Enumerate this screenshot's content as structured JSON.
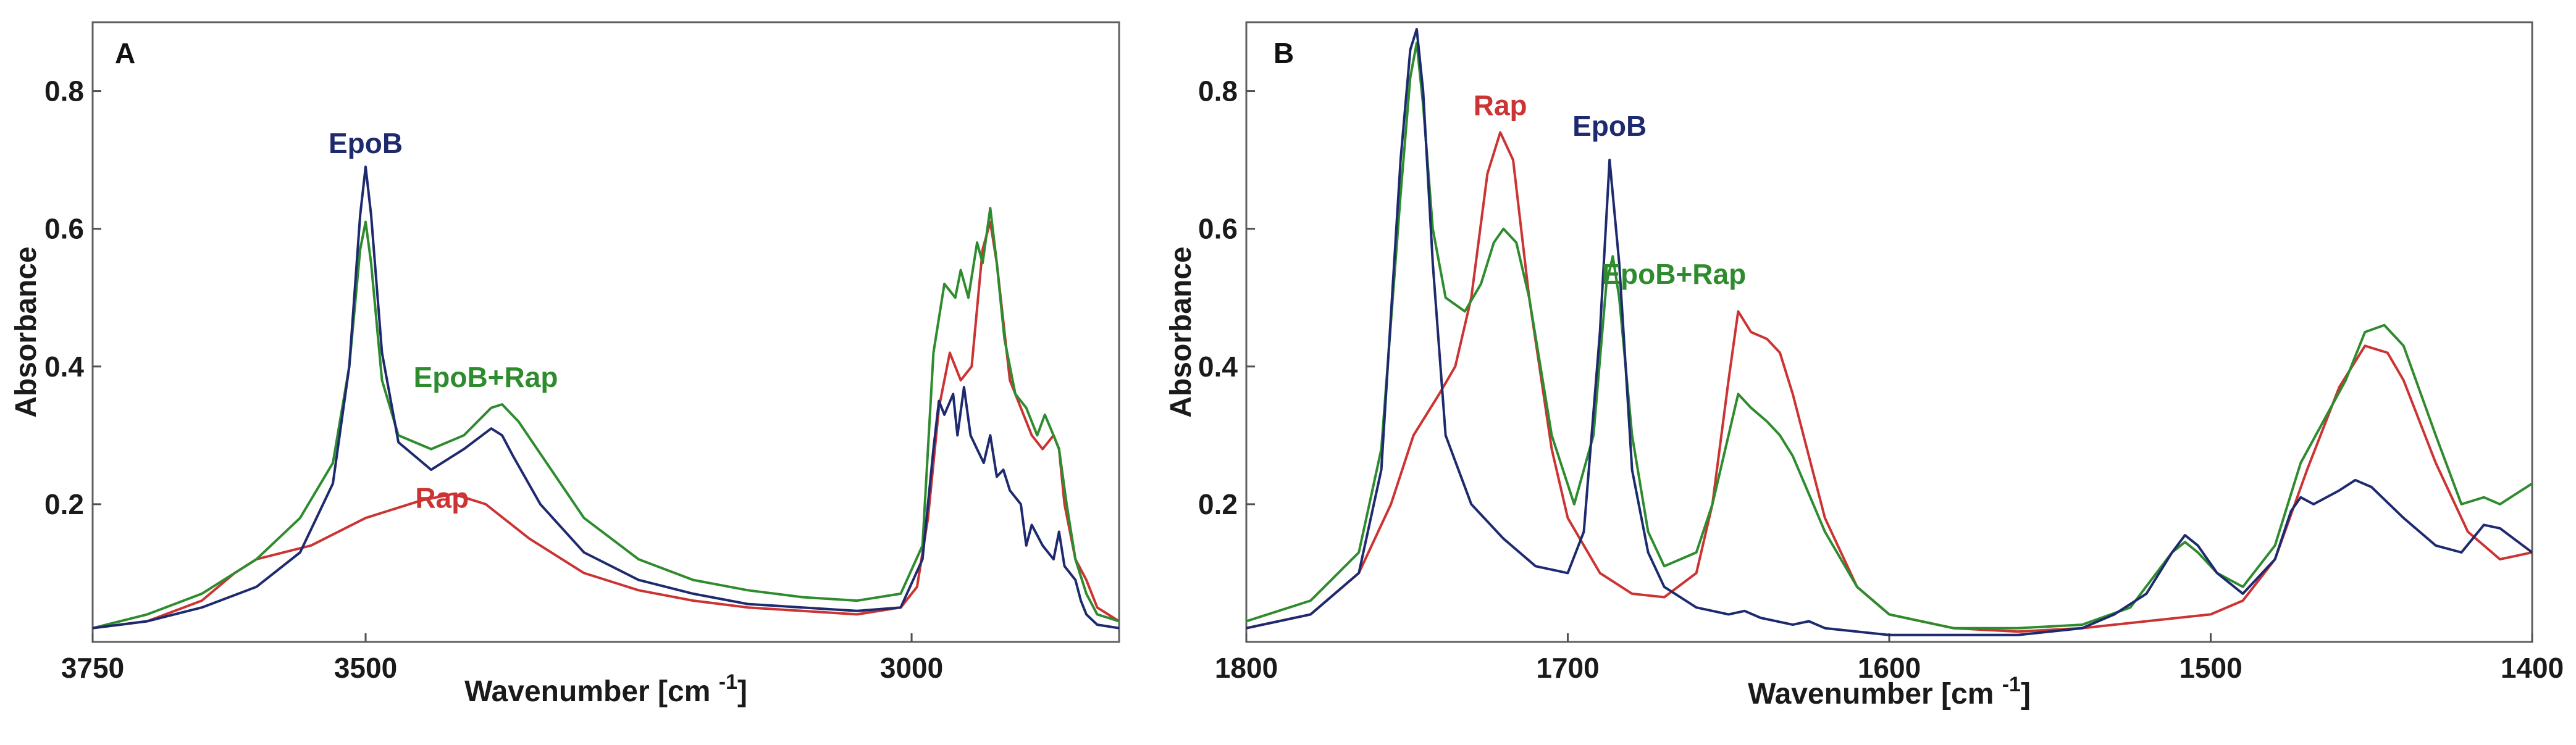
{
  "chart_data": [
    {
      "type": "line",
      "panel": "A",
      "xlabel": "Wavenumber [cm",
      "xlabel_sup": "-1",
      "xlabel_close": "]",
      "ylabel": "Absorbance",
      "xlim": [
        3750,
        2810
      ],
      "ylim": [
        0,
        0.9
      ],
      "xticks": [
        3750,
        3500,
        3000
      ],
      "xtick_labels": [
        "3750",
        "3500",
        "3000"
      ],
      "yticks": [
        0.2,
        0.4,
        0.6,
        0.8
      ],
      "ytick_labels": [
        "0.2",
        "0.4",
        "0.6",
        "0.8"
      ],
      "colors": {
        "EpoB": "#1e2a6e",
        "Rap": "#cc3333",
        "EpoB+Rap": "#2e8b2e"
      },
      "annotations": [
        {
          "text": "EpoB",
          "series": "EpoB",
          "x": 3500,
          "y": 0.71
        },
        {
          "text": "EpoB+Rap",
          "series": "EpoB+Rap",
          "x": 3390,
          "y": 0.37
        },
        {
          "text": "Rap",
          "series": "Rap",
          "x": 3430,
          "y": 0.195
        }
      ],
      "series": [
        {
          "name": "EpoB",
          "x": [
            3750,
            3700,
            3650,
            3600,
            3560,
            3530,
            3515,
            3505,
            3500,
            3495,
            3485,
            3470,
            3440,
            3410,
            3385,
            3375,
            3365,
            3340,
            3300,
            3250,
            3200,
            3150,
            3100,
            3050,
            3010,
            2990,
            2980,
            2975,
            2970,
            2962,
            2958,
            2952,
            2946,
            2940,
            2934,
            2928,
            2922,
            2916,
            2910,
            2900,
            2895,
            2890,
            2880,
            2870,
            2865,
            2860,
            2850,
            2845,
            2840,
            2830,
            2810
          ],
          "y": [
            0.02,
            0.03,
            0.05,
            0.08,
            0.13,
            0.23,
            0.4,
            0.62,
            0.69,
            0.62,
            0.42,
            0.29,
            0.25,
            0.28,
            0.31,
            0.3,
            0.27,
            0.2,
            0.13,
            0.09,
            0.07,
            0.055,
            0.05,
            0.045,
            0.05,
            0.12,
            0.28,
            0.35,
            0.33,
            0.36,
            0.3,
            0.37,
            0.3,
            0.28,
            0.26,
            0.3,
            0.24,
            0.25,
            0.22,
            0.2,
            0.14,
            0.17,
            0.14,
            0.12,
            0.16,
            0.11,
            0.09,
            0.06,
            0.04,
            0.025,
            0.02
          ]
        },
        {
          "name": "Rap",
          "x": [
            3750,
            3700,
            3650,
            3620,
            3600,
            3550,
            3500,
            3450,
            3420,
            3390,
            3350,
            3300,
            3250,
            3200,
            3150,
            3100,
            3050,
            3010,
            2995,
            2985,
            2975,
            2965,
            2955,
            2945,
            2935,
            2928,
            2922,
            2910,
            2900,
            2890,
            2880,
            2870,
            2865,
            2860,
            2850,
            2840,
            2830,
            2810
          ],
          "y": [
            0.02,
            0.03,
            0.06,
            0.1,
            0.12,
            0.14,
            0.18,
            0.205,
            0.215,
            0.2,
            0.15,
            0.1,
            0.075,
            0.06,
            0.05,
            0.045,
            0.04,
            0.05,
            0.08,
            0.18,
            0.34,
            0.42,
            0.38,
            0.4,
            0.57,
            0.61,
            0.55,
            0.38,
            0.34,
            0.3,
            0.28,
            0.3,
            0.28,
            0.2,
            0.12,
            0.09,
            0.05,
            0.03
          ]
        },
        {
          "name": "EpoB+Rap",
          "x": [
            3750,
            3700,
            3650,
            3600,
            3560,
            3530,
            3515,
            3505,
            3500,
            3495,
            3485,
            3470,
            3440,
            3410,
            3385,
            3375,
            3360,
            3330,
            3300,
            3250,
            3200,
            3150,
            3100,
            3050,
            3010,
            2990,
            2980,
            2970,
            2960,
            2955,
            2948,
            2940,
            2935,
            2928,
            2922,
            2915,
            2905,
            2895,
            2885,
            2878,
            2870,
            2865,
            2858,
            2850,
            2840,
            2830,
            2810
          ],
          "y": [
            0.02,
            0.04,
            0.07,
            0.12,
            0.18,
            0.26,
            0.4,
            0.57,
            0.61,
            0.55,
            0.38,
            0.3,
            0.28,
            0.3,
            0.34,
            0.345,
            0.32,
            0.25,
            0.18,
            0.12,
            0.09,
            0.075,
            0.065,
            0.06,
            0.07,
            0.14,
            0.42,
            0.52,
            0.5,
            0.54,
            0.5,
            0.58,
            0.55,
            0.63,
            0.55,
            0.44,
            0.36,
            0.34,
            0.3,
            0.33,
            0.3,
            0.28,
            0.2,
            0.12,
            0.07,
            0.04,
            0.03
          ]
        }
      ]
    },
    {
      "type": "line",
      "panel": "B",
      "xlabel": "Wavenumber [cm",
      "xlabel_sup": "-1",
      "xlabel_close": "]",
      "ylabel": "Absorbance",
      "xlim": [
        1800,
        1400
      ],
      "ylim": [
        0,
        0.9
      ],
      "xticks": [
        1800,
        1700,
        1600,
        1500,
        1400
      ],
      "xtick_labels": [
        "1800",
        "1700",
        "1600",
        "1500",
        "1400"
      ],
      "yticks": [
        0.2,
        0.4,
        0.6,
        0.8
      ],
      "ytick_labels": [
        "0.2",
        "0.4",
        "0.6",
        "0.8"
      ],
      "colors": {
        "EpoB": "#1e2a6e",
        "Rap": "#cc3333",
        "EpoB+Rap": "#2e8b2e"
      },
      "annotations": [
        {
          "text": "Rap",
          "series": "Rap",
          "x": 1721,
          "y": 0.765
        },
        {
          "text": "EpoB",
          "series": "EpoB",
          "x": 1687,
          "y": 0.735
        },
        {
          "text": "EpoB+Rap",
          "series": "EpoB+Rap",
          "x": 1667,
          "y": 0.52
        }
      ],
      "series": [
        {
          "name": "EpoB",
          "x": [
            1800,
            1780,
            1765,
            1758,
            1752,
            1749,
            1747,
            1745,
            1742,
            1738,
            1730,
            1720,
            1710,
            1700,
            1695,
            1690,
            1687,
            1684,
            1680,
            1675,
            1670,
            1660,
            1650,
            1645,
            1640,
            1630,
            1625,
            1620,
            1600,
            1580,
            1560,
            1540,
            1530,
            1520,
            1512,
            1508,
            1504,
            1498,
            1490,
            1480,
            1475,
            1472,
            1468,
            1460,
            1455,
            1450,
            1440,
            1430,
            1422,
            1415,
            1410,
            1400
          ],
          "y": [
            0.02,
            0.04,
            0.1,
            0.25,
            0.7,
            0.86,
            0.89,
            0.8,
            0.55,
            0.3,
            0.2,
            0.15,
            0.11,
            0.1,
            0.16,
            0.45,
            0.7,
            0.55,
            0.25,
            0.13,
            0.08,
            0.05,
            0.04,
            0.045,
            0.035,
            0.025,
            0.03,
            0.02,
            0.01,
            0.01,
            0.01,
            0.02,
            0.04,
            0.07,
            0.13,
            0.155,
            0.14,
            0.1,
            0.07,
            0.12,
            0.19,
            0.21,
            0.2,
            0.22,
            0.235,
            0.225,
            0.18,
            0.14,
            0.13,
            0.17,
            0.165,
            0.13
          ]
        },
        {
          "name": "Rap",
          "x": [
            1800,
            1780,
            1765,
            1755,
            1748,
            1740,
            1735,
            1730,
            1725,
            1721,
            1717,
            1712,
            1705,
            1700,
            1690,
            1680,
            1670,
            1660,
            1655,
            1650,
            1647,
            1643,
            1638,
            1634,
            1630,
            1620,
            1610,
            1600,
            1580,
            1560,
            1540,
            1520,
            1500,
            1490,
            1480,
            1470,
            1460,
            1452,
            1445,
            1440,
            1430,
            1420,
            1410,
            1400
          ],
          "y": [
            0.02,
            0.04,
            0.1,
            0.2,
            0.3,
            0.36,
            0.4,
            0.5,
            0.68,
            0.74,
            0.7,
            0.5,
            0.28,
            0.18,
            0.1,
            0.07,
            0.065,
            0.1,
            0.2,
            0.38,
            0.48,
            0.45,
            0.44,
            0.42,
            0.36,
            0.18,
            0.08,
            0.04,
            0.02,
            0.015,
            0.02,
            0.03,
            0.04,
            0.06,
            0.12,
            0.25,
            0.37,
            0.43,
            0.42,
            0.38,
            0.26,
            0.16,
            0.12,
            0.13
          ]
        },
        {
          "name": "EpoB+Rap",
          "x": [
            1800,
            1780,
            1765,
            1758,
            1752,
            1749,
            1747,
            1745,
            1742,
            1738,
            1732,
            1727,
            1723,
            1720,
            1716,
            1712,
            1705,
            1698,
            1692,
            1688,
            1686,
            1684,
            1680,
            1675,
            1670,
            1660,
            1655,
            1650,
            1647,
            1643,
            1638,
            1634,
            1630,
            1620,
            1610,
            1600,
            1580,
            1560,
            1540,
            1525,
            1512,
            1508,
            1504,
            1498,
            1490,
            1480,
            1472,
            1465,
            1458,
            1452,
            1446,
            1440,
            1430,
            1422,
            1415,
            1410,
            1400
          ],
          "y": [
            0.03,
            0.06,
            0.13,
            0.28,
            0.65,
            0.82,
            0.87,
            0.78,
            0.6,
            0.5,
            0.48,
            0.52,
            0.58,
            0.6,
            0.58,
            0.5,
            0.3,
            0.2,
            0.3,
            0.52,
            0.56,
            0.5,
            0.3,
            0.16,
            0.11,
            0.13,
            0.2,
            0.3,
            0.36,
            0.34,
            0.32,
            0.3,
            0.27,
            0.16,
            0.08,
            0.04,
            0.02,
            0.02,
            0.025,
            0.05,
            0.13,
            0.145,
            0.13,
            0.1,
            0.08,
            0.14,
            0.26,
            0.32,
            0.38,
            0.45,
            0.46,
            0.43,
            0.3,
            0.2,
            0.21,
            0.2,
            0.23
          ]
        }
      ]
    }
  ]
}
